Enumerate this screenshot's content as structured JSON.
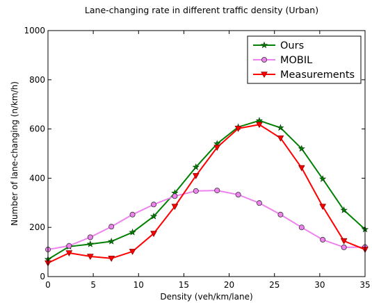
{
  "chart_data": {
    "type": "line",
    "title": "Lane-changing rate in different traffic density (Urban)",
    "xlabel": "Density (veh/km/lane)",
    "ylabel": "Number of lane-changing (n/km/h)",
    "xlim": [
      0,
      35
    ],
    "ylim": [
      0,
      1000
    ],
    "xticks": [
      0,
      5,
      10,
      15,
      20,
      25,
      30,
      35
    ],
    "yticks": [
      0,
      200,
      400,
      600,
      800,
      1000
    ],
    "grid": false,
    "legend_position": "top-right",
    "x": [
      0,
      2.33,
      4.67,
      7.0,
      9.33,
      11.67,
      14.0,
      16.33,
      18.67,
      21.0,
      23.33,
      25.67,
      28.0,
      30.33,
      32.67,
      35.0
    ],
    "series": [
      {
        "name": "Ours",
        "color": "#008000",
        "marker": "star",
        "values": [
          70,
          122,
          132,
          143,
          180,
          245,
          340,
          445,
          540,
          608,
          634,
          605,
          520,
          397,
          270,
          192
        ]
      },
      {
        "name": "MOBIL",
        "color": "#ee82ee",
        "marker": "circle",
        "values": [
          110,
          125,
          160,
          203,
          252,
          293,
          327,
          348,
          350,
          333,
          299,
          252,
          200,
          150,
          119,
          120
        ]
      },
      {
        "name": "Measurements",
        "color": "#ff0000",
        "marker": "triangle-down",
        "values": [
          55,
          96,
          82,
          74,
          102,
          175,
          285,
          410,
          525,
          602,
          618,
          563,
          442,
          285,
          145,
          110
        ]
      }
    ]
  }
}
